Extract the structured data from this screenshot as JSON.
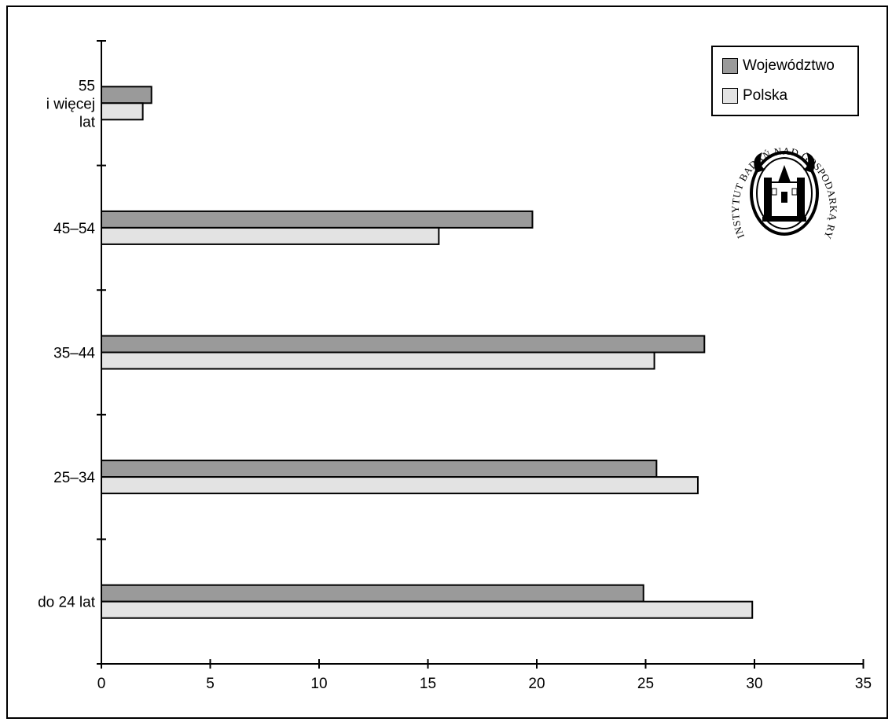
{
  "chart_data": {
    "type": "bar",
    "orientation": "horizontal",
    "categories": [
      "55\ni więcej\nlat",
      "45–54",
      "35–44",
      "25–34",
      "do 24 lat"
    ],
    "series": [
      {
        "name": "Województwo",
        "color": "#9a9a9a",
        "values": [
          2.3,
          19.8,
          27.7,
          25.5,
          24.9
        ]
      },
      {
        "name": "Polska",
        "color": "#e3e3e3",
        "values": [
          1.9,
          15.5,
          25.4,
          27.4,
          29.9
        ]
      }
    ],
    "x_ticks": [
      "0",
      "5",
      "10",
      "15",
      "20",
      "25",
      "30",
      "35"
    ],
    "xlim": [
      0,
      35
    ],
    "grid": false,
    "legend_position": "top-right",
    "title": "",
    "xlabel": "",
    "ylabel": ""
  },
  "logo": {
    "icon": "institute-seal-icon",
    "text": "INSTYTUT BADAŃ NAD GOSPODARKĄ RYNKOWĄ"
  }
}
